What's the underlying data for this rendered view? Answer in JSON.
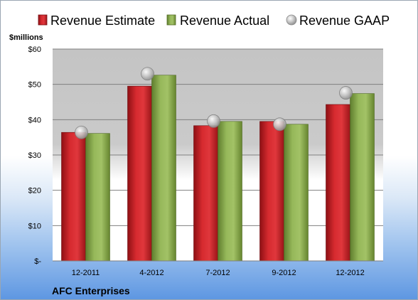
{
  "chart_data": {
    "type": "bar",
    "title": "",
    "unit_label": "$millions",
    "company": "AFC Enterprises",
    "categories": [
      "12-2011",
      "4-2012",
      "7-2012",
      "9-2012",
      "12-2012"
    ],
    "series": [
      {
        "name": "Revenue Estimate",
        "kind": "bar",
        "color": "#cc1f25",
        "values": [
          36.4,
          49.5,
          38.3,
          39.5,
          44.3
        ]
      },
      {
        "name": "Revenue Actual",
        "kind": "bar",
        "color": "#86a84a",
        "values": [
          36.1,
          52.6,
          39.5,
          38.7,
          47.4
        ]
      },
      {
        "name": "Revenue GAAP",
        "kind": "marker",
        "color": "#bfbfbf",
        "values": [
          36.4,
          53.0,
          39.6,
          38.7,
          47.6
        ]
      }
    ],
    "ylim": [
      0,
      60
    ],
    "y_ticks": [
      0,
      10,
      20,
      30,
      40,
      50,
      60
    ],
    "y_tick_labels": [
      "$-",
      "$10",
      "$20",
      "$30",
      "$40",
      "$50",
      "$60"
    ],
    "grid": true,
    "legend_position": "top"
  }
}
